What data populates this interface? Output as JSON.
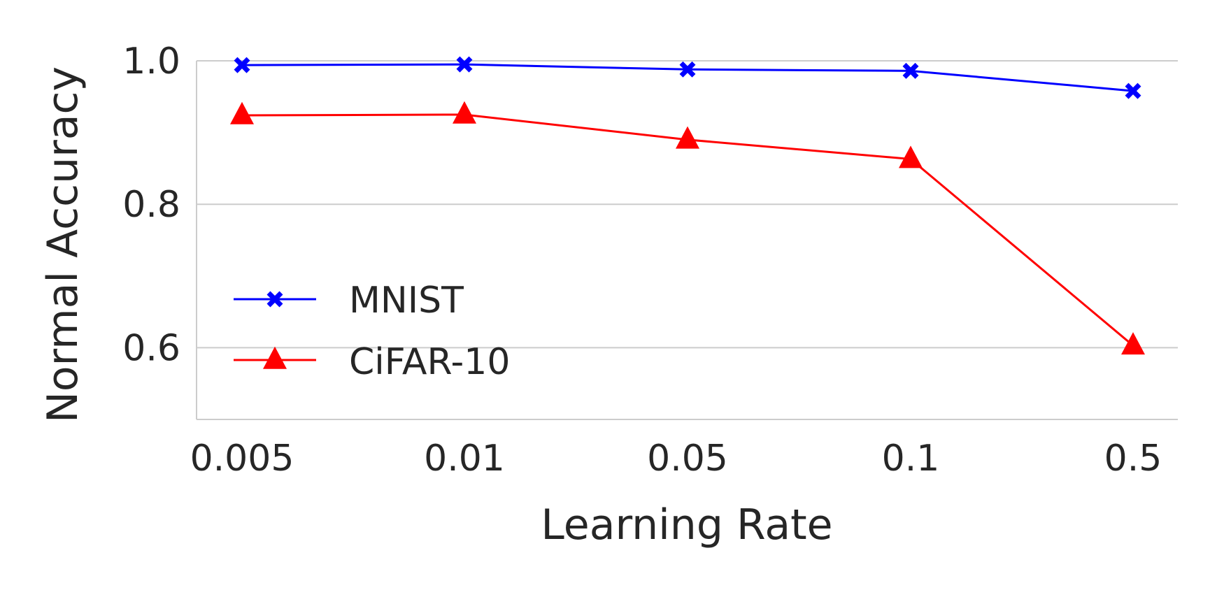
{
  "chart_data": {
    "type": "line",
    "title": "",
    "xlabel": "Learning Rate",
    "ylabel": "Normal Accuracy",
    "categories": [
      "0.005",
      "0.01",
      "0.05",
      "0.1",
      "0.5"
    ],
    "y_ticks": [
      "0.6",
      "0.8",
      "1.0"
    ],
    "ylim": [
      0.5,
      1.0
    ],
    "grid": "horizontal",
    "legend_position": "center-left",
    "series": [
      {
        "name": "MNIST",
        "values": [
          0.994,
          0.995,
          0.988,
          0.986,
          0.958
        ],
        "color": "#0000ff",
        "marker": "x"
      },
      {
        "name": "CiFAR-10",
        "values": [
          0.924,
          0.925,
          0.89,
          0.863,
          0.603
        ],
        "color": "#ff0000",
        "marker": "triangle"
      }
    ]
  }
}
